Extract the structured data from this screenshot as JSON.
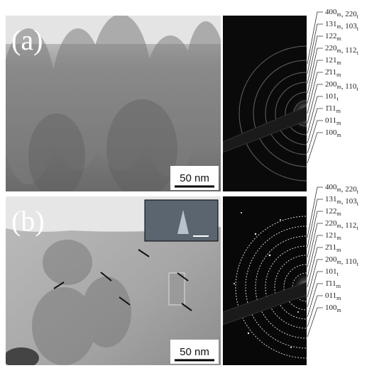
{
  "panels": [
    {
      "label": "(a)",
      "scale_bar": "50 nm",
      "rings": [
        [
          {
            "text": "400",
            "sub": "m"
          },
          {
            "text": ", 220",
            "sub": "t"
          }
        ],
        [
          {
            "text": "131",
            "sub": "m"
          },
          {
            "text": ", 103",
            "sub": "t"
          }
        ],
        [
          {
            "text": "122",
            "sub": "m"
          }
        ],
        [
          {
            "text": "220",
            "sub": "m"
          },
          {
            "text": ", 112",
            "sub": "t"
          }
        ],
        [
          {
            "text": "121",
            "sub": "m"
          }
        ],
        [
          {
            "text": "2̄11",
            "sub": "m"
          }
        ],
        [
          {
            "text": "200",
            "sub": "m"
          },
          {
            "text": ", 110",
            "sub": "t"
          }
        ],
        [
          {
            "text": "101",
            "sub": "t"
          }
        ],
        [
          {
            "text": "1̄11",
            "sub": "m"
          }
        ],
        [
          {
            "text": "011",
            "sub": "m"
          }
        ],
        [
          {
            "text": "100",
            "sub": "m"
          }
        ]
      ]
    },
    {
      "label": "(b)",
      "scale_bar": "50 nm",
      "rings": [
        [
          {
            "text": "400",
            "sub": "m"
          },
          {
            "text": ", 220",
            "sub": "t"
          }
        ],
        [
          {
            "text": "131",
            "sub": "m"
          },
          {
            "text": ", 103",
            "sub": "t"
          }
        ],
        [
          {
            "text": "122",
            "sub": "m"
          }
        ],
        [
          {
            "text": "220",
            "sub": "m"
          },
          {
            "text": ", 112",
            "sub": "t"
          }
        ],
        [
          {
            "text": "121",
            "sub": "m"
          }
        ],
        [
          {
            "text": "2̄11",
            "sub": "m"
          }
        ],
        [
          {
            "text": "200",
            "sub": "m"
          },
          {
            "text": ", 110",
            "sub": "t"
          }
        ],
        [
          {
            "text": "101",
            "sub": "t"
          }
        ],
        [
          {
            "text": "1̄11",
            "sub": "m"
          }
        ],
        [
          {
            "text": "011",
            "sub": "m"
          }
        ],
        [
          {
            "text": "100",
            "sub": "m"
          }
        ]
      ]
    }
  ]
}
